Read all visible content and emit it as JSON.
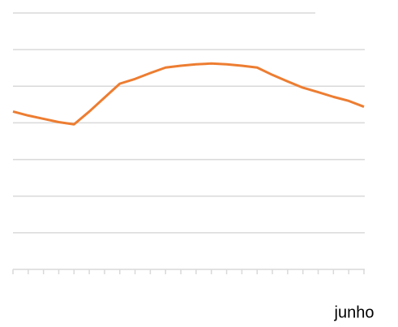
{
  "chart_data": {
    "type": "line",
    "x_label": "junho",
    "series": [
      {
        "color": "#ed7d31",
        "values": [
          4.31,
          4.2,
          4.11,
          4.02,
          3.96,
          4.31,
          4.69,
          5.07,
          5.2,
          5.36,
          5.51,
          5.56,
          5.6,
          5.62,
          5.6,
          5.56,
          5.51,
          5.31,
          5.13,
          4.96,
          4.84,
          4.71,
          4.6,
          4.44
        ]
      }
    ],
    "ylim": [
      0,
      7
    ],
    "yticks": [
      0,
      1,
      2,
      3,
      4,
      5,
      6,
      7
    ],
    "grid": true
  }
}
